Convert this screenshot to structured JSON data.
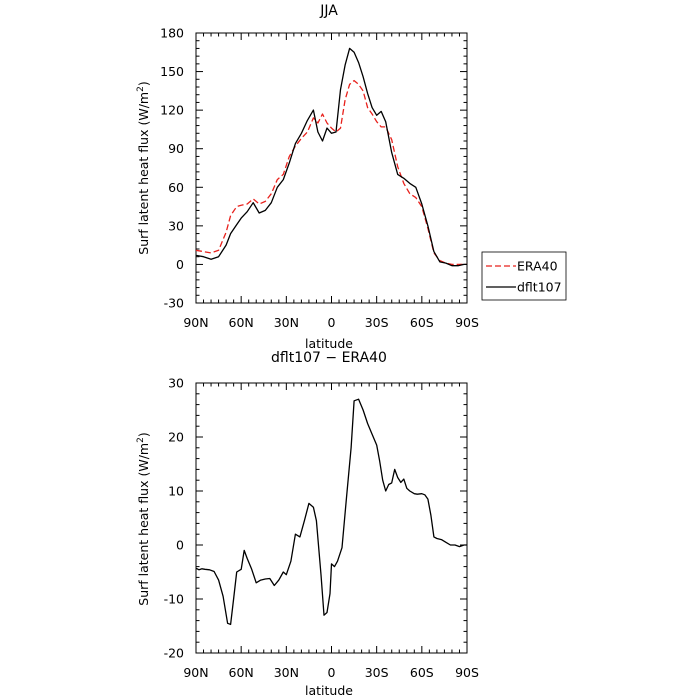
{
  "chart_data": [
    {
      "type": "line",
      "title": "JJA",
      "xlabel": "latitude",
      "ylabel": "Surf latent heat flux (W/m²)",
      "ylabel_prefix": "Surf latent heat flux (W/m",
      "ylabel_sup": "2",
      "ylabel_suffix": ")",
      "xlim": [
        90,
        -90
      ],
      "ylim": [
        -30,
        180
      ],
      "xticks": [
        90,
        60,
        30,
        0,
        -30,
        -60,
        -90
      ],
      "xtick_labels": [
        "90N",
        "60N",
        "30N",
        "0",
        "30S",
        "60S",
        "90S"
      ],
      "yticks": [
        -30,
        0,
        30,
        60,
        90,
        120,
        150,
        180
      ],
      "ytick_labels": [
        "-30",
        "0",
        "30",
        "60",
        "90",
        "120",
        "150",
        "180"
      ],
      "legend": {
        "placement": "right",
        "entries": [
          {
            "name": "ERA40",
            "color": "#e8211c",
            "dash": true
          },
          {
            "name": "dflt107",
            "color": "#000000",
            "dash": false
          }
        ]
      },
      "series": [
        {
          "name": "ERA40",
          "color": "#e8211c",
          "style": "dashed",
          "x": [
            90,
            85,
            80,
            75,
            70,
            67,
            63,
            60,
            56,
            52,
            48,
            44,
            40,
            36,
            32,
            28,
            24,
            20,
            16,
            12,
            9,
            6,
            3,
            0,
            -3,
            -6,
            -9,
            -12,
            -15,
            -18,
            -21,
            -24,
            -27,
            -30,
            -33,
            -36,
            -40,
            -44,
            -48,
            -52,
            -56,
            -60,
            -64,
            -68,
            -72,
            -76,
            -80,
            -84,
            -88,
            -90
          ],
          "y": [
            11,
            10,
            9,
            11,
            25,
            38,
            45,
            46,
            47,
            51,
            47,
            49,
            55,
            66,
            70,
            84,
            92,
            98,
            103,
            114,
            110,
            117,
            110,
            106,
            103,
            106,
            128,
            140,
            143,
            140,
            135,
            122,
            117,
            111,
            107,
            107,
            97,
            76,
            63,
            55,
            52,
            45,
            28,
            9,
            3,
            1,
            0,
            0,
            0,
            0
          ]
        },
        {
          "name": "dflt107",
          "color": "#000000",
          "style": "solid",
          "x": [
            90,
            85,
            80,
            75,
            70,
            67,
            63,
            60,
            56,
            52,
            48,
            44,
            40,
            36,
            32,
            28,
            24,
            20,
            16,
            12,
            9,
            6,
            3,
            0,
            -3,
            -6,
            -9,
            -12,
            -15,
            -18,
            -21,
            -24,
            -27,
            -30,
            -33,
            -36,
            -40,
            -44,
            -48,
            -52,
            -56,
            -60,
            -64,
            -68,
            -72,
            -76,
            -80,
            -84,
            -88,
            -90
          ],
          "y": [
            7,
            6,
            4,
            6,
            15,
            24,
            31,
            36,
            41,
            48,
            40,
            42,
            48,
            60,
            66,
            79,
            94,
            102,
            112,
            120,
            103,
            96,
            106,
            102,
            103,
            136,
            155,
            168,
            165,
            157,
            146,
            133,
            122,
            116,
            119,
            111,
            87,
            70,
            67,
            63,
            60,
            47,
            30,
            10,
            2,
            1,
            -1,
            -1,
            0,
            0
          ]
        }
      ]
    },
    {
      "type": "line",
      "title": "dflt107 − ERA40",
      "xlabel": "latitude",
      "ylabel": "Surf latent heat flux (W/m²)",
      "ylabel_prefix": "Surf latent heat flux (W/m",
      "ylabel_sup": "2",
      "ylabel_suffix": ")",
      "xlim": [
        90,
        -90
      ],
      "ylim": [
        -20,
        30
      ],
      "xticks": [
        90,
        60,
        30,
        0,
        -30,
        -60,
        -90
      ],
      "xtick_labels": [
        "90N",
        "60N",
        "30N",
        "0",
        "30S",
        "60S",
        "90S"
      ],
      "yticks": [
        -20,
        -10,
        0,
        10,
        20,
        30
      ],
      "ytick_labels": [
        "-20",
        "-10",
        "0",
        "10",
        "20",
        "30"
      ],
      "series": [
        {
          "color": "#000000",
          "style": "solid",
          "x": [
            90,
            88,
            86,
            84,
            81,
            78,
            75,
            72,
            69,
            67,
            65,
            63,
            60,
            58,
            56,
            53,
            50,
            47,
            44,
            41,
            38,
            35,
            32,
            30,
            27,
            24,
            21,
            18,
            15,
            12,
            10,
            7,
            5,
            3,
            1,
            0,
            -2,
            -4,
            -7,
            -10,
            -13,
            -15,
            -18,
            -21,
            -24,
            -27,
            -30,
            -32,
            -34,
            -36,
            -38,
            -40,
            -42,
            -44,
            -46,
            -48,
            -50,
            -52,
            -55,
            -57,
            -60,
            -62,
            -64,
            -66,
            -68,
            -70,
            -73,
            -76,
            -79,
            -82,
            -85,
            -88,
            -90
          ],
          "y": [
            -4.3,
            -4.6,
            -4.4,
            -4.5,
            -4.6,
            -4.9,
            -6.5,
            -9.5,
            -14.5,
            -14.7,
            -10,
            -5,
            -4.5,
            -1,
            -2.5,
            -4.5,
            -7,
            -6.5,
            -6.3,
            -6.2,
            -7.5,
            -6.5,
            -5,
            -5.5,
            -3,
            2,
            1.5,
            4.5,
            7.7,
            7,
            4.5,
            -5.5,
            -13,
            -12.5,
            -9,
            -3.5,
            -4,
            -3,
            -0.5,
            9,
            18,
            26.7,
            27,
            25,
            22.5,
            20.5,
            18.5,
            15.5,
            12,
            10,
            11.2,
            11.5,
            14,
            12.5,
            11.6,
            12.2,
            10.5,
            10,
            9.5,
            9.4,
            9.5,
            9.3,
            8.5,
            5.5,
            1.5,
            1.2,
            1,
            0.5,
            0,
            0,
            -0.3,
            0,
            0
          ]
        }
      ]
    }
  ]
}
